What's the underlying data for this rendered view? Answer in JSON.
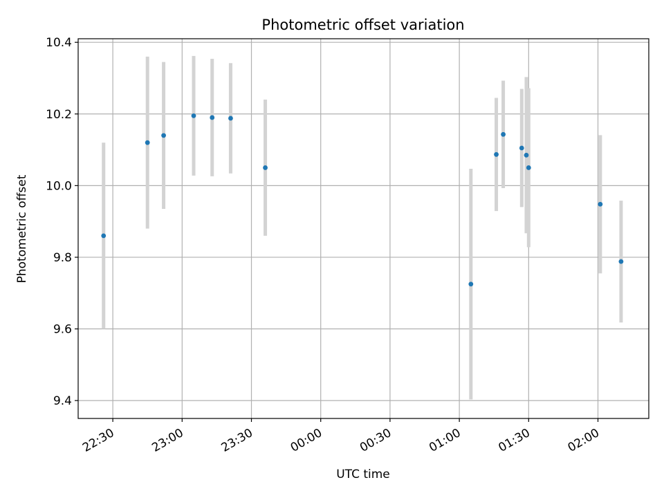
{
  "chart_data": {
    "type": "scatter",
    "title": "Photometric offset variation",
    "xlabel": "UTC time",
    "ylabel": "Photometric offset",
    "x_unit": "time (HH:MM, crosses midnight)",
    "x_ticks": [
      "22:30",
      "23:00",
      "23:30",
      "00:00",
      "00:30",
      "01:00",
      "01:30",
      "02:00"
    ],
    "y_ticks": [
      "9.4",
      "9.6",
      "9.8",
      "10.0",
      "10.2",
      "10.4"
    ],
    "xlim": [
      "22:15",
      "02:22"
    ],
    "ylim": [
      9.35,
      10.41
    ],
    "grid": true,
    "colors": {
      "marker": "#1f77b4",
      "errorbar": "#d3d3d3",
      "grid": "#b0b0b0"
    },
    "points": [
      {
        "t": "22:26",
        "y": 9.86,
        "err": 0.26
      },
      {
        "t": "22:45",
        "y": 10.12,
        "err": 0.24
      },
      {
        "t": "22:52",
        "y": 10.14,
        "err": 0.205
      },
      {
        "t": "23:05",
        "y": 10.195,
        "err": 0.167
      },
      {
        "t": "23:13",
        "y": 10.19,
        "err": 0.164
      },
      {
        "t": "23:21",
        "y": 10.188,
        "err": 0.154
      },
      {
        "t": "23:36",
        "y": 10.05,
        "err": 0.19
      },
      {
        "t": "01:05",
        "y": 9.725,
        "err": 0.322
      },
      {
        "t": "01:16",
        "y": 10.087,
        "err": 0.158
      },
      {
        "t": "01:19",
        "y": 10.143,
        "err": 0.15
      },
      {
        "t": "01:27",
        "y": 10.105,
        "err": 0.165
      },
      {
        "t": "01:29",
        "y": 10.085,
        "err": 0.218
      },
      {
        "t": "01:30",
        "y": 10.05,
        "err": 0.222
      },
      {
        "t": "02:01",
        "y": 9.948,
        "err": 0.193
      },
      {
        "t": "02:10",
        "y": 9.788,
        "err": 0.17
      }
    ]
  }
}
